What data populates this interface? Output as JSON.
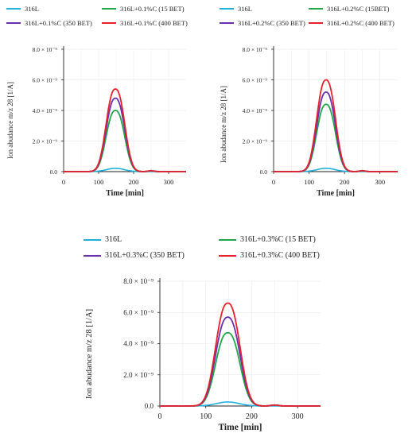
{
  "chart_data": [
    {
      "type": "line",
      "xlabel": "Time [min]",
      "ylabel": "Ion abudance m/z 28 [1/A]",
      "xlim": [
        0,
        350
      ],
      "ylim": [
        0,
        8e-09
      ],
      "x_ticks": [
        "0",
        "100",
        "200",
        "300"
      ],
      "y_ticks": [
        "0.0",
        "2.0 × 10⁻⁹",
        "4.0 × 10⁻⁹",
        "6.0 × 10⁻⁹",
        "8.0 × 10⁻⁹"
      ],
      "legend_position": "top",
      "grid": true,
      "series": [
        {
          "name": "316L",
          "color": "#1fb0e0",
          "peak": 2.2e-10
        },
        {
          "name": "316L+0.1%C (15 BET)",
          "color": "#1ea84a",
          "peak": 4e-09
        },
        {
          "name": "316L+0.1%C (350 BET)",
          "color": "#6a2fb0",
          "peak": 4.8e-09
        },
        {
          "name": "316L+0.1%C (400 BET)",
          "color": "#e8202a",
          "peak": 5.4e-09
        }
      ]
    },
    {
      "type": "line",
      "xlabel": "Time [min]",
      "ylabel": "Ion abudance m/z 28 [1/A]",
      "xlim": [
        0,
        350
      ],
      "ylim": [
        0,
        8e-09
      ],
      "x_ticks": [
        "0",
        "100",
        "200",
        "300"
      ],
      "y_ticks": [
        "0.0",
        "2.0 × 10⁻⁹",
        "4.0 × 10⁻⁹",
        "6.0 × 10⁻⁹",
        "8.0 × 10⁻⁹"
      ],
      "legend_position": "top",
      "grid": true,
      "series": [
        {
          "name": "316L",
          "color": "#1fb0e0",
          "peak": 2.2e-10
        },
        {
          "name": "316L+0.2%C (15BET)",
          "color": "#1ea84a",
          "peak": 4.4e-09
        },
        {
          "name": "316L+0.2%C (350 BET)",
          "color": "#6a2fb0",
          "peak": 5.2e-09
        },
        {
          "name": "316L+0.2%C (400 BET)",
          "color": "#e8202a",
          "peak": 6e-09
        }
      ]
    },
    {
      "type": "line",
      "xlabel": "Time [min]",
      "ylabel": "Ion abudance m/z 28 [1/A]",
      "xlim": [
        0,
        350
      ],
      "ylim": [
        0,
        8e-09
      ],
      "x_ticks": [
        "0",
        "100",
        "200",
        "300"
      ],
      "y_ticks": [
        "0.0",
        "2.0 × 10⁻⁹",
        "4.0 × 10⁻⁹",
        "6.0 × 10⁻⁹",
        "8.0 × 10⁻⁹"
      ],
      "legend_position": "top",
      "grid": true,
      "series": [
        {
          "name": "316L",
          "color": "#1fb0e0",
          "peak": 2.6e-10
        },
        {
          "name": "316L+0.3%C (15 BET)",
          "color": "#1ea84a",
          "peak": 4.7e-09
        },
        {
          "name": "316L+0.3%C (350 BET)",
          "color": "#6a2fb0",
          "peak": 5.7e-09
        },
        {
          "name": "316L+0.3%C (400 BET)",
          "color": "#e8202a",
          "peak": 6.6e-09
        }
      ]
    }
  ]
}
